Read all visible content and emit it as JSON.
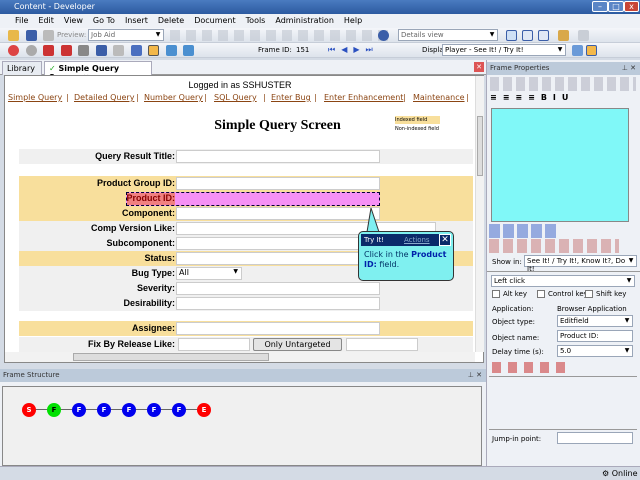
{
  "window": {
    "title": "Content - Developer"
  },
  "menu": [
    "File",
    "Edit",
    "View",
    "Go To",
    "Insert",
    "Delete",
    "Document",
    "Tools",
    "Administration",
    "Help"
  ],
  "toolbar": {
    "preview_label": "Preview:",
    "preview_value": "Job Aid",
    "view_value": "Details view",
    "frame_id_label": "Frame ID:",
    "frame_id": "151",
    "display_label": "Display:",
    "display_value": "Player - See It! / Try It!"
  },
  "tabs": [
    {
      "label": "Library"
    },
    {
      "label": "Simple Query Screen",
      "active": true
    }
  ],
  "page": {
    "logged_in": "Logged in as SSHUSTER",
    "nav": [
      "Simple Query",
      "Detailed Query",
      "Number Query",
      "SQL Query",
      "Enter Bug",
      "Enter Enhancement",
      "Maintenance"
    ],
    "title": "Simple Query Screen",
    "legend": {
      "indexed": "Indexed field",
      "non_indexed": "Non-indexed field"
    },
    "fields": {
      "query_result_title": "Query Result Title:",
      "product_group_id": "Product Group ID:",
      "product_id": "Product ID:",
      "component": "Component:",
      "comp_version_like": "Comp Version Like:",
      "subcomponent": "Subcomponent:",
      "status": "Status:",
      "bug_type": "Bug Type:",
      "bug_type_value": "All",
      "severity": "Severity:",
      "desirability": "Desirability:",
      "assignee": "Assignee:",
      "fix_by_release_like": "Fix By Release Like:",
      "only_untargeted": "Only Untargeted"
    }
  },
  "callout": {
    "title": "Try It!",
    "actions": "Actions",
    "text_pre": "Click in the ",
    "text_bold": "Product ID:",
    "text_post": " field."
  },
  "frame_structure": {
    "title": "Frame Structure",
    "nodes": [
      {
        "label": "S",
        "color": "#ff0000"
      },
      {
        "label": "F",
        "color": "#00e000"
      },
      {
        "label": "F",
        "color": "#0000ee"
      },
      {
        "label": "F",
        "color": "#0000ee"
      },
      {
        "label": "F",
        "color": "#0000ee"
      },
      {
        "label": "F",
        "color": "#0000ee"
      },
      {
        "label": "F",
        "color": "#0000ee"
      },
      {
        "label": "E",
        "color": "#ff0000"
      }
    ]
  },
  "frame_properties": {
    "title": "Frame Properties",
    "show_in_label": "Show in:",
    "show_in_value": "See It! / Try It!, Know It?, Do It!",
    "action": "Left click",
    "alt_key": "Alt key",
    "control_key": "Control key",
    "shift_key": "Shift key",
    "application_label": "Application:",
    "application_value": "Browser Application",
    "object_type_label": "Object type:",
    "object_type_value": "Editfield",
    "object_name_label": "Object name:",
    "object_name_value": "Product ID:",
    "delay_label": "Delay time (s):",
    "delay_value": "5.0",
    "jump_in_label": "Jump-in point:",
    "preview_color": "#80f8f8"
  },
  "status": {
    "online": "Online"
  }
}
